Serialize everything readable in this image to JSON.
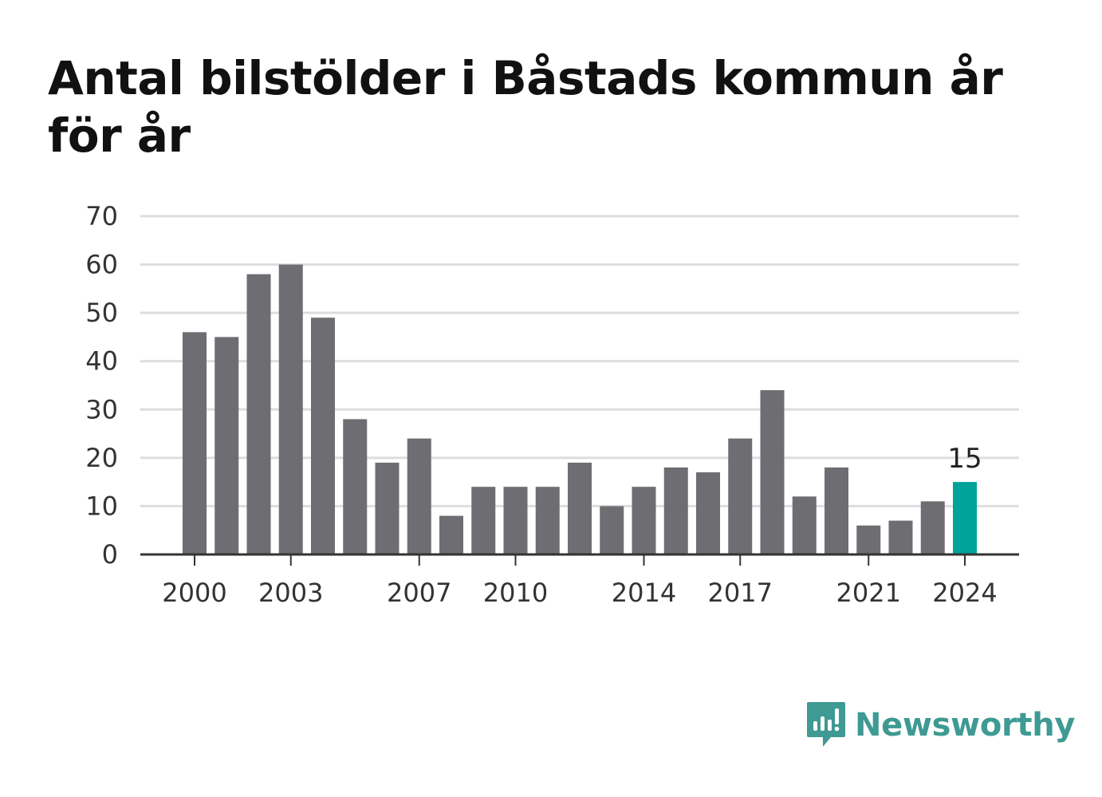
{
  "title": "Antal bilstölder i Båstads kommun år för år",
  "brand": {
    "name": "Newsworthy",
    "icon": "newsworthy-logo-icon",
    "color": "#3e9a92"
  },
  "colors": {
    "bar": "#6e6d72",
    "highlight": "#00a39a",
    "grid": "#dddddd",
    "axis": "#333333"
  },
  "chart_data": {
    "type": "bar",
    "title": "Antal bilstölder i Båstads kommun år för år",
    "xlabel": "",
    "ylabel": "",
    "categories": [
      "2000",
      "2001",
      "2002",
      "2003",
      "2004",
      "2005",
      "2006",
      "2007",
      "2008",
      "2009",
      "2010",
      "2011",
      "2012",
      "2013",
      "2014",
      "2015",
      "2016",
      "2017",
      "2018",
      "2019",
      "2020",
      "2021",
      "2022",
      "2023",
      "2024"
    ],
    "values": [
      46,
      45,
      58,
      60,
      49,
      28,
      19,
      24,
      8,
      14,
      14,
      14,
      19,
      10,
      14,
      18,
      17,
      24,
      34,
      12,
      18,
      6,
      7,
      11,
      15
    ],
    "x_tick_labels": [
      "2000",
      "2003",
      "2007",
      "2010",
      "2014",
      "2017",
      "2021",
      "2024"
    ],
    "ylim": [
      0,
      70
    ],
    "y_ticks": [
      0,
      10,
      20,
      30,
      40,
      50,
      60,
      70
    ],
    "grid": true,
    "highlight": {
      "category": "2024",
      "label": "15"
    }
  }
}
